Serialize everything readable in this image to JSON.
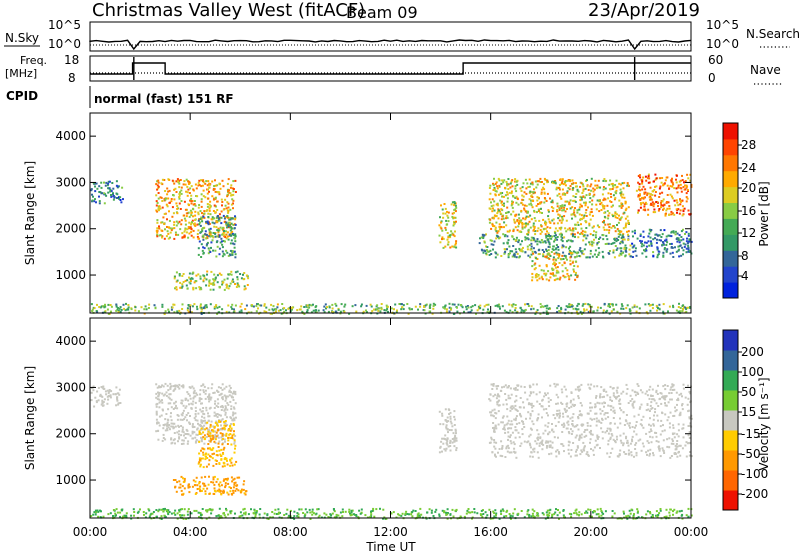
{
  "header": {
    "station": "Christmas Valley West (fitACF)",
    "beam": "Beam 09",
    "date": "23/Apr/2019"
  },
  "top_panels": {
    "nsky_label": "N.Sky",
    "nsearch_label": "N.Search",
    "freq_label_line1": "Freq.",
    "freq_label_line2": "[MHz]",
    "nave_label": "Nave",
    "cpid_label": "CPID",
    "cpid_text": "normal (fast) 151 RF",
    "noise_ticks_left": [
      "10^5",
      "10^0"
    ],
    "noise_ticks_right": [
      "10^5",
      "10^0"
    ],
    "freq_ticks": [
      "18",
      "8"
    ],
    "nave_ticks": [
      "60",
      "0"
    ]
  },
  "colorbars": {
    "power": {
      "label": "Power [dB]",
      "ticks": [
        "28",
        "24",
        "20",
        "16",
        "12",
        "8",
        "4"
      ],
      "colors": [
        "#0022dd",
        "#2244cc",
        "#336699",
        "#339966",
        "#44aa55",
        "#88cc44",
        "#ddcc22",
        "#ffaa00",
        "#ff7700",
        "#ff4400",
        "#ee1100"
      ]
    },
    "velocity": {
      "label": "Velocity [m s⁻¹]",
      "ticks": [
        "200",
        "100",
        "50",
        "15",
        "-15",
        "-50",
        "-100",
        "-200"
      ],
      "colors": [
        "#2233bb",
        "#336699",
        "#33aa55",
        "#77cc33",
        "#c8c8c0",
        "#ffcc00",
        "#ff9900",
        "#ff6600",
        "#ee1100"
      ]
    }
  },
  "chart_data": [
    {
      "type": "heatmap",
      "name_panel": "power",
      "xlabel": "",
      "ylabel": "Slant Range [km]",
      "x_ticks": [
        "00:00",
        "04:00",
        "08:00",
        "12:00",
        "16:00",
        "20:00",
        "00:00"
      ],
      "xlim_hours": [
        0,
        24
      ],
      "y_ticks": [
        "4000",
        "3000",
        "2000",
        "1000"
      ],
      "ylim_km": [
        180,
        4500
      ],
      "scatter_regions": [
        {
          "t0": 0.0,
          "t1": 1.3,
          "r0": 2550,
          "r1": 3050,
          "value": 8
        },
        {
          "t0": 2.6,
          "t1": 5.8,
          "r0": 1800,
          "r1": 3100,
          "value": 22
        },
        {
          "t0": 3.3,
          "t1": 6.3,
          "r0": 700,
          "r1": 1100,
          "value": 16
        },
        {
          "t0": 4.3,
          "t1": 5.8,
          "r0": 1400,
          "r1": 2300,
          "value": 10
        },
        {
          "t0": 13.9,
          "t1": 14.6,
          "r0": 1600,
          "r1": 2600,
          "value": 18
        },
        {
          "t0": 15.9,
          "t1": 21.5,
          "r0": 1900,
          "r1": 3100,
          "value": 20
        },
        {
          "t0": 15.5,
          "t1": 21.6,
          "r0": 1400,
          "r1": 1900,
          "value": 12
        },
        {
          "t0": 17.6,
          "t1": 19.5,
          "r0": 900,
          "r1": 1500,
          "value": 20
        },
        {
          "t0": 21.8,
          "t1": 24.0,
          "r0": 2300,
          "r1": 3200,
          "value": 26
        },
        {
          "t0": 21.6,
          "t1": 24.0,
          "r0": 1400,
          "r1": 2000,
          "value": 8
        },
        {
          "t0": 0.0,
          "t1": 24.0,
          "r0": 180,
          "r1": 400,
          "value": 14
        }
      ]
    },
    {
      "type": "heatmap",
      "name_panel": "velocity",
      "xlabel": "Time UT",
      "ylabel": "Slant Range [km]",
      "x_ticks": [
        "00:00",
        "04:00",
        "08:00",
        "12:00",
        "16:00",
        "20:00",
        "00:00"
      ],
      "xlim_hours": [
        0,
        24
      ],
      "y_ticks": [
        "4000",
        "3000",
        "2000",
        "1000"
      ],
      "ylim_km": [
        180,
        4500
      ],
      "scatter_regions": [
        {
          "t0": 0.0,
          "t1": 1.2,
          "r0": 2600,
          "r1": 3050,
          "value": 0
        },
        {
          "t0": 2.6,
          "t1": 5.8,
          "r0": 1800,
          "r1": 3100,
          "value": 0
        },
        {
          "t0": 3.3,
          "t1": 6.3,
          "r0": 700,
          "r1": 1100,
          "value": -40
        },
        {
          "t0": 4.3,
          "t1": 5.8,
          "r0": 1300,
          "r1": 2300,
          "value": -30
        },
        {
          "t0": 13.9,
          "t1": 14.6,
          "r0": 1600,
          "r1": 2600,
          "value": 0
        },
        {
          "t0": 15.9,
          "t1": 24.0,
          "r0": 1500,
          "r1": 3100,
          "value": 0
        },
        {
          "t0": 0.0,
          "t1": 24.0,
          "r0": 180,
          "r1": 400,
          "value": 30
        }
      ]
    }
  ]
}
